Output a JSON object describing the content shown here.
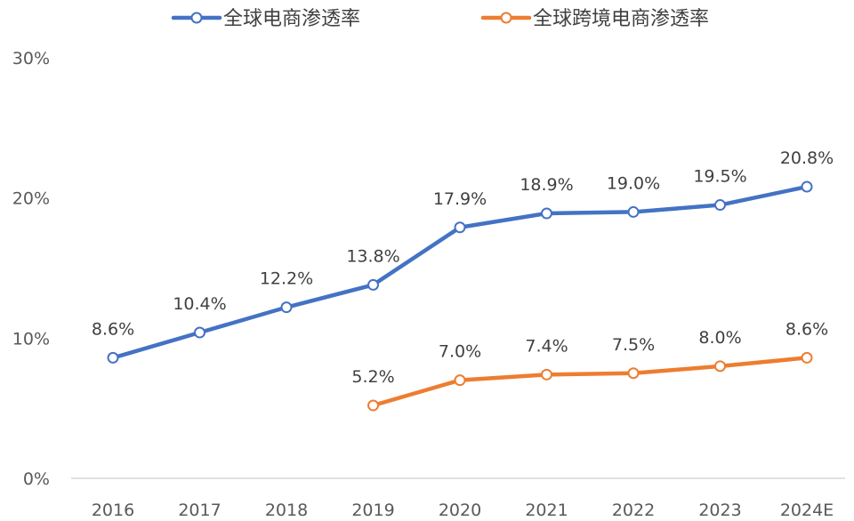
{
  "chart_data": {
    "type": "line",
    "categories": [
      "2016",
      "2017",
      "2018",
      "2019",
      "2020",
      "2021",
      "2022",
      "2023",
      "2024E"
    ],
    "ylim": [
      0,
      30
    ],
    "yticks": [
      "0%",
      "10%",
      "20%",
      "30%"
    ],
    "ytick_values": [
      0,
      10,
      20,
      30
    ],
    "grid": false,
    "legend_position": "top",
    "series": [
      {
        "name": "全球电商渗透率",
        "color": "#4472C4",
        "values": [
          8.6,
          10.4,
          12.2,
          13.8,
          17.9,
          18.9,
          19.0,
          19.5,
          20.8
        ],
        "labels": [
          "8.6%",
          "10.4%",
          "12.2%",
          "13.8%",
          "17.9%",
          "18.9%",
          "19.0%",
          "19.5%",
          "20.8%"
        ]
      },
      {
        "name": "全球跨境电商渗透率",
        "color": "#ED7D31",
        "values": [
          null,
          null,
          null,
          5.2,
          7.0,
          7.4,
          7.5,
          8.0,
          8.6
        ],
        "labels": [
          null,
          null,
          null,
          "5.2%",
          "7.0%",
          "7.4%",
          "7.5%",
          "8.0%",
          "8.6%"
        ]
      }
    ]
  }
}
